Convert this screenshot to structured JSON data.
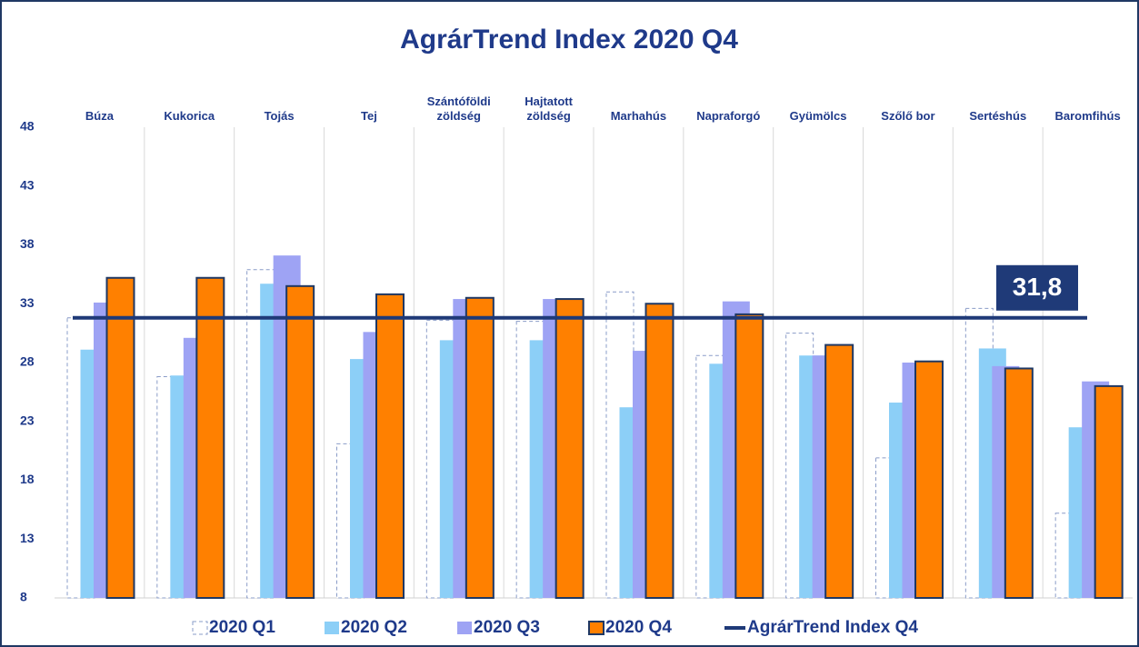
{
  "chart_data": {
    "type": "bar",
    "title": "AgrárTrend Index 2020 Q4",
    "categories": [
      "Búza",
      "Kukorica",
      "Tojás",
      "Tej",
      "Szántóföldi zöldség",
      "Hajtatott zöldség",
      "Marhahús",
      "Napraforgó",
      "Gyümölcs",
      "Szőlő bor",
      "Sertéshús",
      "Baromfihús"
    ],
    "series": [
      {
        "name": "2020 Q1",
        "color": "#ffffff",
        "stroke": "#8a9cc8",
        "dashed": true,
        "values": [
          31.8,
          26.8,
          35.9,
          21.1,
          31.6,
          31.5,
          34.0,
          28.6,
          30.5,
          19.9,
          32.6,
          15.2
        ]
      },
      {
        "name": "2020 Q2",
        "color": "#8ccff7",
        "values": [
          29.1,
          26.9,
          34.7,
          28.3,
          29.9,
          29.9,
          24.2,
          27.9,
          28.6,
          24.6,
          29.2,
          22.5
        ]
      },
      {
        "name": "2020 Q3",
        "color": "#9ea3f4",
        "values": [
          33.1,
          30.1,
          37.1,
          30.6,
          33.4,
          33.4,
          29.0,
          33.2,
          28.6,
          28.0,
          27.7,
          26.4
        ]
      },
      {
        "name": "2020 Q4",
        "color": "#ff8000",
        "stroke": "#1f3864",
        "values": [
          35.2,
          35.2,
          34.5,
          33.8,
          33.5,
          33.4,
          33.0,
          32.1,
          29.5,
          28.1,
          27.5,
          26.0
        ]
      }
    ],
    "index": {
      "name": "AgrárTrend Index Q4",
      "color": "#1f3a78",
      "values": [
        31.8
      ],
      "value_labels": [
        "31,8"
      ]
    },
    "ylim": [
      8,
      48
    ],
    "yticks": [
      8,
      13,
      18,
      23,
      28,
      33,
      38,
      43,
      48
    ],
    "grid": "vertical"
  }
}
